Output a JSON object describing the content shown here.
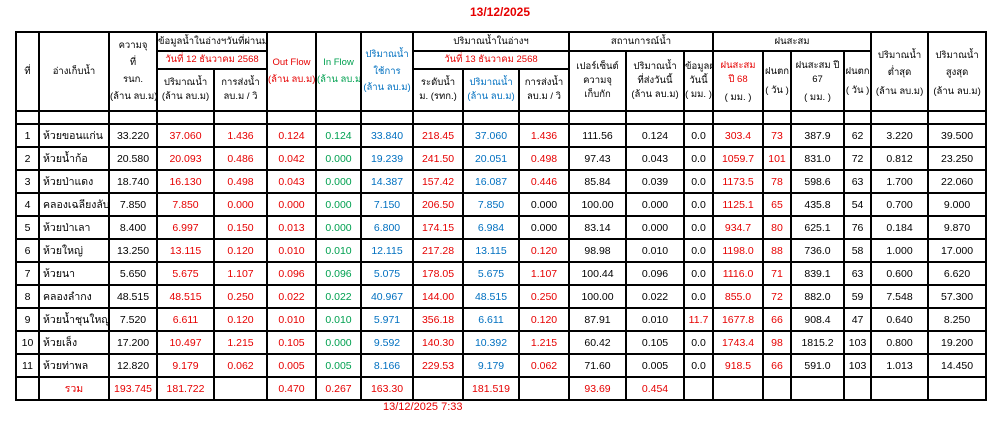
{
  "page": {
    "title": "13/12/2025",
    "footer": "13/12/2025 7:33"
  },
  "table": {
    "colors": {
      "red": "#e60000",
      "green": "#00a050",
      "blue": "#0070c0",
      "black": "#000000"
    },
    "header": {
      "no": "ที่",
      "reservoir": "อ่างเก็บน้ำ",
      "capacity_lines": [
        "ความจุ",
        "ที่",
        "รนก.",
        "(ล้าน ลบ.ม)"
      ],
      "prev_group": "ข้อมูลน้ำในอ่างฯวันที่ผ่านมา",
      "prev_date": "วันที่ 12 ธันวาคม 2568",
      "vol_lines": [
        "ปริมาณน้ำ",
        "(ล้าน ลบ.ม)"
      ],
      "send_lines": [
        "การส่งน้ำ",
        "ลบ.ม / วิ"
      ],
      "outflow_lines": [
        "Out Flow",
        "(ล้าน ลบ.ม)"
      ],
      "inflow_lines": [
        "In Flow",
        "(ล้าน ลบ.ม)"
      ],
      "usable_lines": [
        "ปริมาณน้ำ",
        "ใช้การ",
        "(ล้าน ลบ.ม)"
      ],
      "today_group": "ปริมาณน้ำในอ่างฯ",
      "today_date": "วันที่ 13 ธันวาคม 2568",
      "level_lines": [
        "ระดับน้ำ",
        "ม. (รทก.)"
      ],
      "status_group": "สถานการณ์น้ำ",
      "pct_lines": [
        "เปอร์เซ็นต์",
        "ความจุ",
        "เก็บกัก"
      ],
      "sent_today_lines": [
        "ปริมาณน้ำ",
        "ที่ส่งวันนี้",
        "(ล้าน ลบ.ม)"
      ],
      "rain_today_lines": [
        "ข้อมูลฝน",
        "วันนี้",
        "( มม. )"
      ],
      "rain_group": "ฝนสะสม",
      "rain68_title_lines": [
        "ฝนสะสม",
        "ปี 68"
      ],
      "rain68_unit": "( มม. )",
      "raindays_title": "ฝนตก",
      "raindays_unit": "( วัน )",
      "rain67_title_lines": [
        "ฝนสะสม ปี",
        "67"
      ],
      "rain67_unit": "( มม. )",
      "min_title_lines": [
        "ปริมาณน้ำ",
        "ต่ำสุด"
      ],
      "min_unit": "(ล้าน ลบ.ม)",
      "max_title_lines": [
        "ปริมาณน้ำ",
        "สูงสุด"
      ],
      "max_unit": "(ล้าน ลบ.ม)"
    },
    "columns": [
      {
        "key": "no",
        "color": "black"
      },
      {
        "key": "name",
        "color": "black",
        "align": "left"
      },
      {
        "key": "capacity",
        "color": "black"
      },
      {
        "key": "vol12",
        "color": "red"
      },
      {
        "key": "send12",
        "color": "red"
      },
      {
        "key": "outflow",
        "color": "red"
      },
      {
        "key": "inflow",
        "color": "green"
      },
      {
        "key": "usable",
        "color": "blue"
      },
      {
        "key": "level13",
        "color": "red"
      },
      {
        "key": "vol13",
        "color": "blue"
      },
      {
        "key": "send13",
        "color": "red",
        "black_when": "0.000"
      },
      {
        "key": "pct",
        "color": "black"
      },
      {
        "key": "sent_today",
        "color": "black"
      },
      {
        "key": "rain_today",
        "color": "black",
        "red_when_not": "0.0"
      },
      {
        "key": "rain68",
        "color": "red"
      },
      {
        "key": "raindays68",
        "color": "red"
      },
      {
        "key": "rain67",
        "color": "black"
      },
      {
        "key": "raindays67",
        "color": "black"
      },
      {
        "key": "min",
        "color": "black"
      },
      {
        "key": "max",
        "color": "black"
      }
    ],
    "rows": [
      [
        "1",
        "ห้วยขอนแก่น",
        "33.220",
        "37.060",
        "1.436",
        "0.124",
        "0.124",
        "33.840",
        "218.45",
        "37.060",
        "1.436",
        "111.56",
        "0.124",
        "0.0",
        "303.4",
        "73",
        "387.9",
        "62",
        "3.220",
        "39.500"
      ],
      [
        "2",
        "ห้วยน้ำก้อ",
        "20.580",
        "20.093",
        "0.486",
        "0.042",
        "0.000",
        "19.239",
        "241.50",
        "20.051",
        "0.498",
        "97.43",
        "0.043",
        "0.0",
        "1059.7",
        "101",
        "831.0",
        "72",
        "0.812",
        "23.250"
      ],
      [
        "3",
        "ห้วยป่าแดง",
        "18.740",
        "16.130",
        "0.498",
        "0.043",
        "0.000",
        "14.387",
        "157.42",
        "16.087",
        "0.446",
        "85.84",
        "0.039",
        "0.0",
        "1173.5",
        "78",
        "598.6",
        "63",
        "1.700",
        "22.060"
      ],
      [
        "4",
        "คลองเฉลียงลับ",
        "7.850",
        "7.850",
        "0.000",
        "0.000",
        "0.000",
        "7.150",
        "206.50",
        "7.850",
        "0.000",
        "100.00",
        "0.000",
        "0.0",
        "1125.1",
        "65",
        "435.8",
        "54",
        "0.700",
        "9.000"
      ],
      [
        "5",
        "ห้วยป่าเลา",
        "8.400",
        "6.997",
        "0.150",
        "0.013",
        "0.000",
        "6.800",
        "174.15",
        "6.984",
        "0.000",
        "83.14",
        "0.000",
        "0.0",
        "934.7",
        "80",
        "625.1",
        "76",
        "0.184",
        "9.870"
      ],
      [
        "6",
        "ห้วยใหญ่",
        "13.250",
        "13.115",
        "0.120",
        "0.010",
        "0.010",
        "12.115",
        "217.28",
        "13.115",
        "0.120",
        "98.98",
        "0.010",
        "0.0",
        "1198.0",
        "88",
        "736.0",
        "58",
        "1.000",
        "17.000"
      ],
      [
        "7",
        "ห้วยนา",
        "5.650",
        "5.675",
        "1.107",
        "0.096",
        "0.096",
        "5.075",
        "178.05",
        "5.675",
        "1.107",
        "100.44",
        "0.096",
        "0.0",
        "1116.0",
        "71",
        "839.1",
        "63",
        "0.600",
        "6.620"
      ],
      [
        "8",
        "คลองลำกง",
        "48.515",
        "48.515",
        "0.250",
        "0.022",
        "0.022",
        "40.967",
        "144.00",
        "48.515",
        "0.250",
        "100.00",
        "0.022",
        "0.0",
        "855.0",
        "72",
        "882.0",
        "59",
        "7.548",
        "57.300"
      ],
      [
        "9",
        "ห้วยน้ำชุนใหญ่",
        "7.520",
        "6.611",
        "0.120",
        "0.010",
        "0.010",
        "5.971",
        "356.18",
        "6.611",
        "0.120",
        "87.91",
        "0.010",
        "11.7",
        "1677.8",
        "66",
        "908.4",
        "47",
        "0.640",
        "8.250"
      ],
      [
        "10",
        "ห้วยเล็ง",
        "17.200",
        "10.497",
        "1.215",
        "0.105",
        "0.000",
        "9.592",
        "140.30",
        "10.392",
        "1.215",
        "60.42",
        "0.105",
        "0.0",
        "1743.4",
        "98",
        "1815.2",
        "103",
        "0.800",
        "19.200"
      ],
      [
        "11",
        "ห้วยท่าพล",
        "12.820",
        "9.179",
        "0.062",
        "0.005",
        "0.005",
        "8.166",
        "229.53",
        "9.179",
        "0.062",
        "71.60",
        "0.005",
        "0.0",
        "918.5",
        "66",
        "591.0",
        "103",
        "1.013",
        "14.450"
      ]
    ],
    "total": {
      "cells": [
        "",
        "รวม",
        "193.745",
        "181.722",
        "",
        "0.470",
        "0.267",
        "163.30",
        "",
        "181.519",
        "",
        "93.69",
        "0.454",
        "",
        "",
        "",
        "",
        "",
        "",
        ""
      ],
      "color": "red"
    }
  }
}
